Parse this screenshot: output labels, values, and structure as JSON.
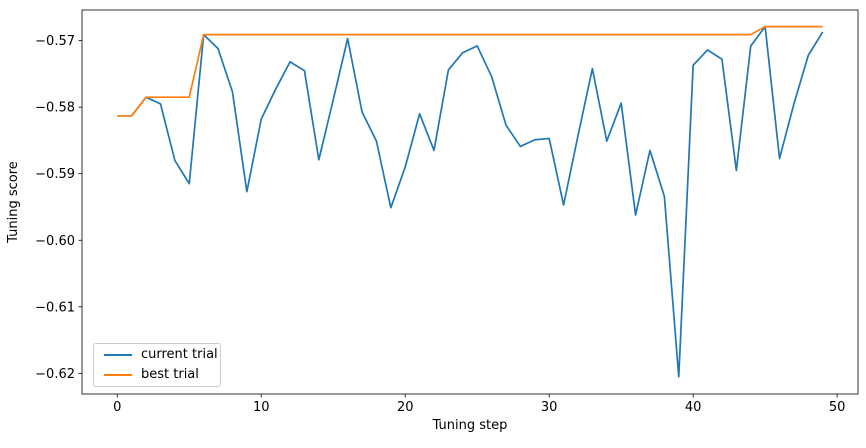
{
  "figure": {
    "background": "#ffffff"
  },
  "chart_data": {
    "type": "line",
    "title": "",
    "xlabel": "Tuning step",
    "ylabel": "Tuning score",
    "x": [
      0,
      1,
      2,
      3,
      4,
      5,
      6,
      7,
      8,
      9,
      10,
      11,
      12,
      13,
      14,
      15,
      16,
      17,
      18,
      19,
      20,
      21,
      22,
      23,
      24,
      25,
      26,
      27,
      28,
      29,
      30,
      31,
      32,
      33,
      34,
      35,
      36,
      37,
      38,
      39,
      40,
      41,
      42,
      43,
      44,
      45,
      46,
      47,
      48,
      49
    ],
    "series": [
      {
        "name": "current trial",
        "color": "#1f77b4",
        "values": [
          -0.5813,
          -0.5813,
          -0.5785,
          -0.5795,
          -0.588,
          -0.5915,
          -0.5691,
          -0.5712,
          -0.5777,
          -0.5927,
          -0.5818,
          -0.5773,
          -0.5732,
          -0.5745,
          -0.5879,
          -0.5789,
          -0.5697,
          -0.5807,
          -0.5851,
          -0.5951,
          -0.589,
          -0.581,
          -0.5865,
          -0.5744,
          -0.5718,
          -0.5708,
          -0.5754,
          -0.5827,
          -0.5859,
          -0.5849,
          -0.5847,
          -0.5947,
          -0.5843,
          -0.5742,
          -0.5851,
          -0.5794,
          -0.5962,
          -0.5865,
          -0.5934,
          -0.6205,
          -0.5737,
          -0.5714,
          -0.5728,
          -0.5895,
          -0.5708,
          -0.5679,
          -0.5877,
          -0.5795,
          -0.5722,
          -0.5687
        ]
      },
      {
        "name": "best trial",
        "color": "#ff7f0e",
        "values": [
          -0.5813,
          -0.5813,
          -0.5785,
          -0.5785,
          -0.5785,
          -0.5785,
          -0.5691,
          -0.5691,
          -0.5691,
          -0.5691,
          -0.5691,
          -0.5691,
          -0.5691,
          -0.5691,
          -0.5691,
          -0.5691,
          -0.5691,
          -0.5691,
          -0.5691,
          -0.5691,
          -0.5691,
          -0.5691,
          -0.5691,
          -0.5691,
          -0.5691,
          -0.5691,
          -0.5691,
          -0.5691,
          -0.5691,
          -0.5691,
          -0.5691,
          -0.5691,
          -0.5691,
          -0.5691,
          -0.5691,
          -0.5691,
          -0.5691,
          -0.5691,
          -0.5691,
          -0.5691,
          -0.5691,
          -0.5691,
          -0.5691,
          -0.5691,
          -0.5691,
          -0.5679,
          -0.5679,
          -0.5679,
          -0.5679,
          -0.5679
        ]
      }
    ],
    "xticks": [
      0,
      10,
      20,
      30,
      40,
      50
    ],
    "yticks": [
      -0.57,
      -0.58,
      -0.59,
      -0.6,
      -0.61,
      -0.62
    ],
    "xlim": [
      -2.45,
      51.45
    ],
    "ylim": [
      -0.6231,
      -0.5654
    ],
    "grid": false,
    "legend_position": "lower left",
    "axis_color": "#000000"
  }
}
